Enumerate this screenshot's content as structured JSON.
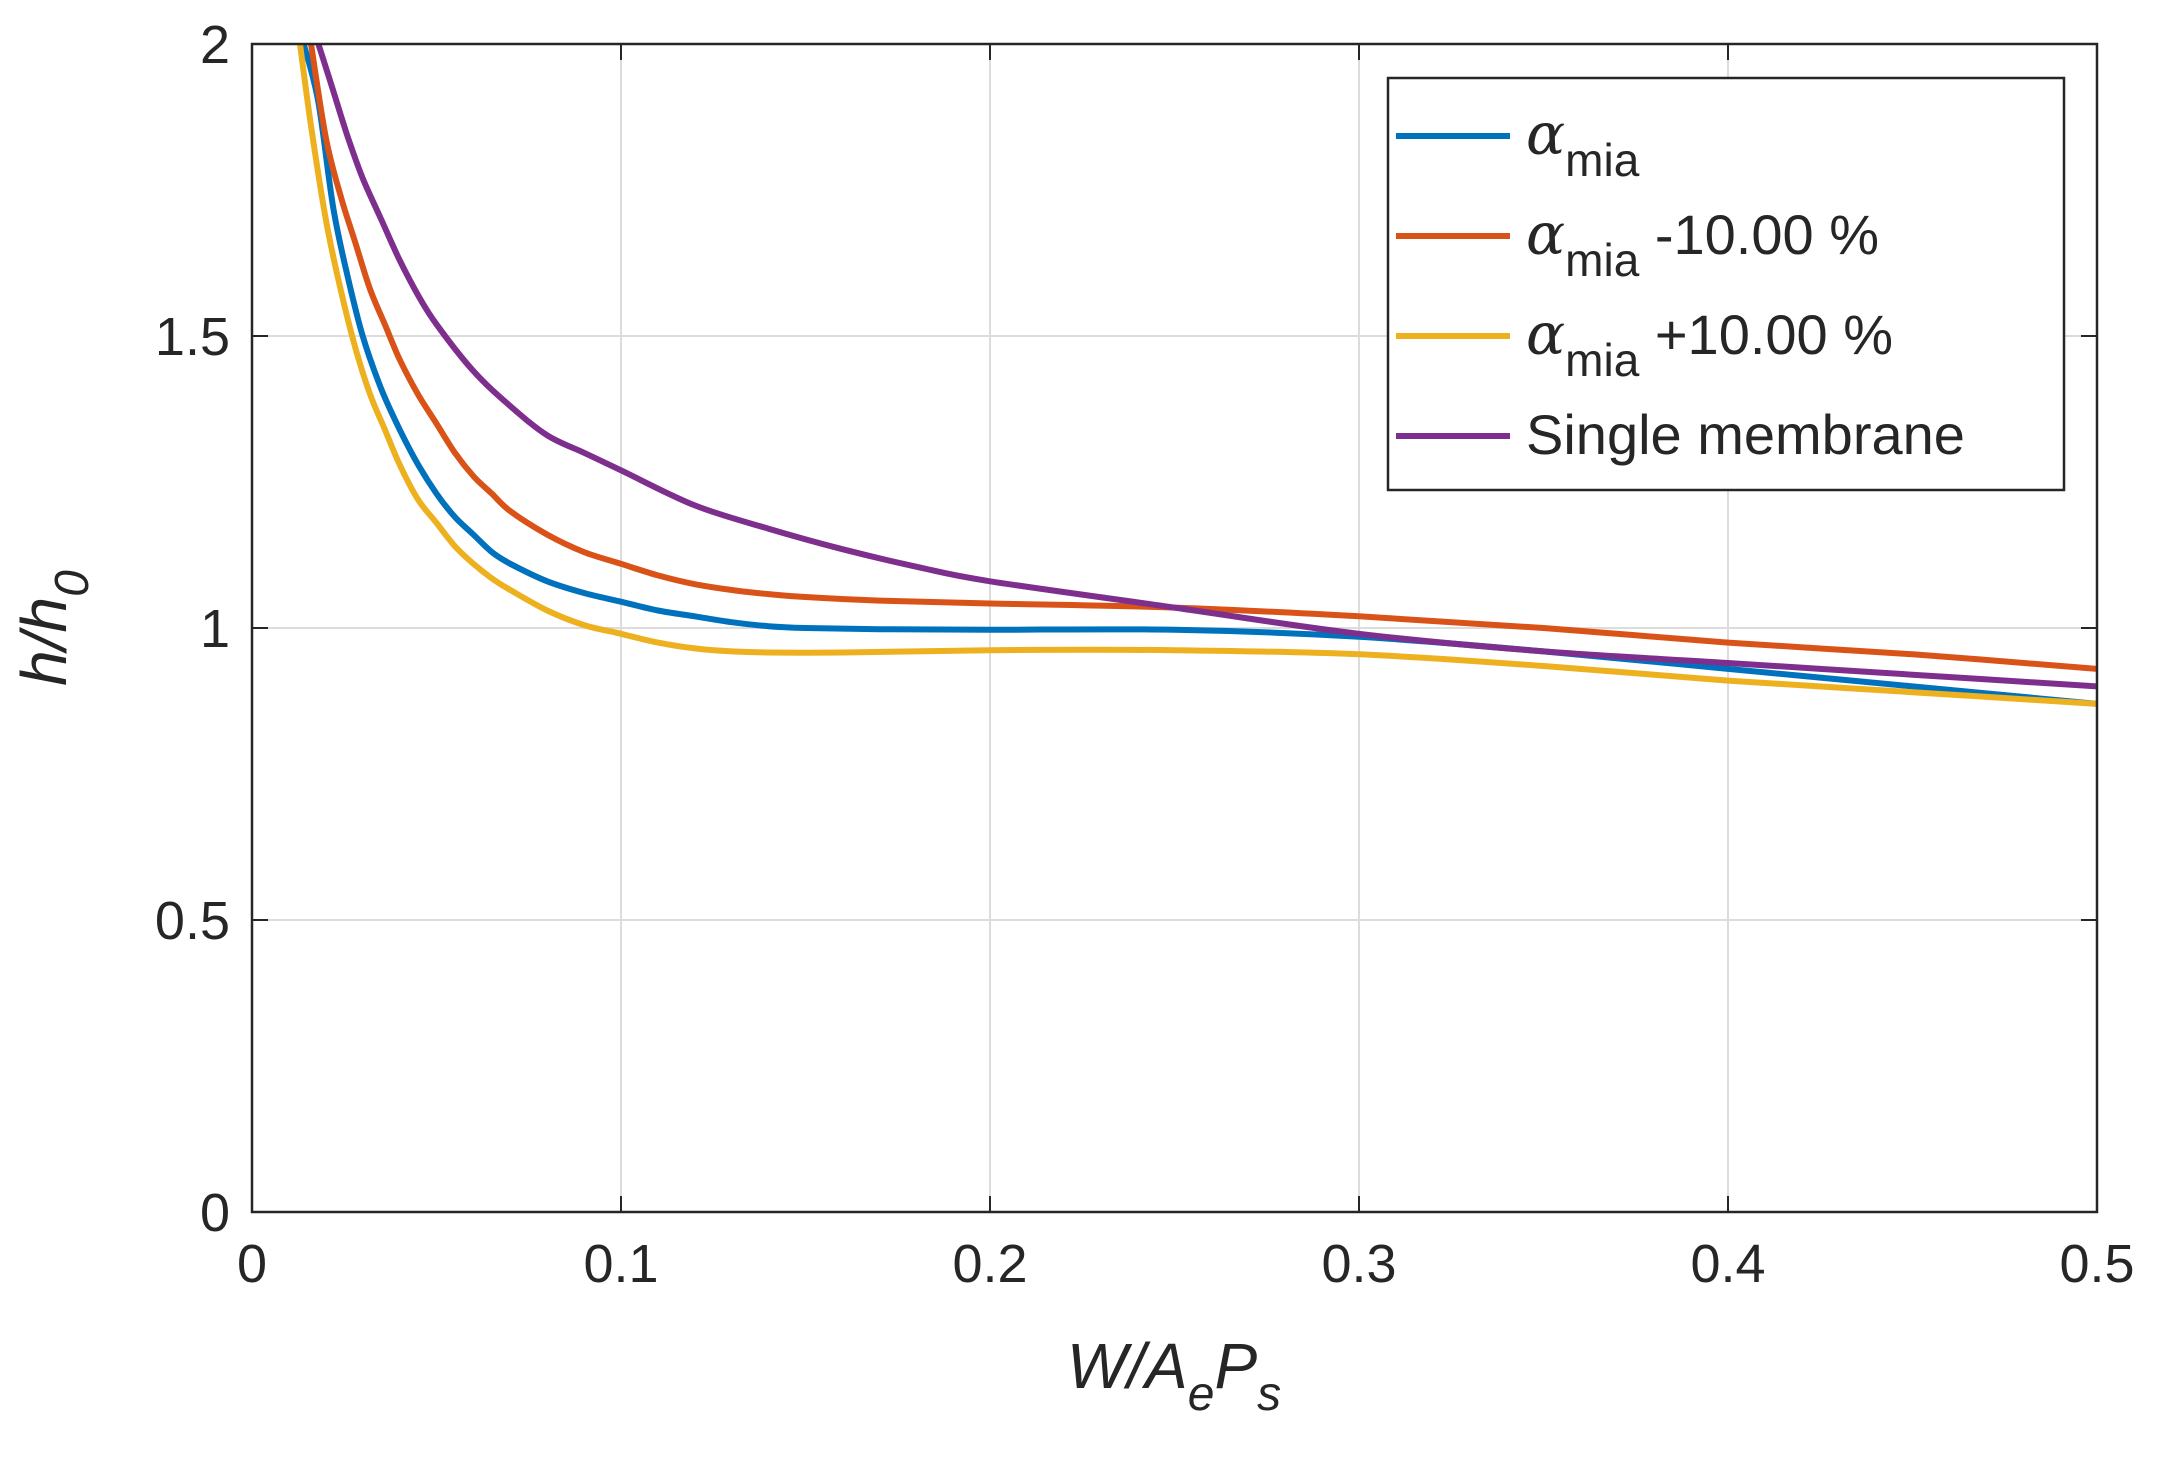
{
  "chart_data": {
    "type": "line",
    "title": "",
    "xlabel": {
      "main": "W/A",
      "sub1": "e",
      "mid": "P",
      "sub2": "s"
    },
    "ylabel": {
      "main": "h/h",
      "sub": "0"
    },
    "xlim": [
      0,
      0.5
    ],
    "ylim": [
      0,
      2
    ],
    "grid": true,
    "legend_position": "top-right",
    "xticks": [
      0,
      0.1,
      0.2,
      0.3,
      0.4,
      0.5
    ],
    "xtick_labels": [
      "0",
      "0.1",
      "0.2",
      "0.3",
      "0.4",
      "0.5"
    ],
    "yticks": [
      0,
      0.5,
      1,
      1.5,
      2
    ],
    "ytick_labels": [
      "0",
      "0.5",
      "1",
      "1.5",
      "2"
    ],
    "series": [
      {
        "name": "α mia",
        "legend": {
          "symbol": "α",
          "sub": "mia",
          "suffix": ""
        },
        "color": "#0072BD",
        "x": [
          0.014,
          0.018,
          0.022,
          0.026,
          0.03,
          0.035,
          0.04,
          0.045,
          0.05,
          0.055,
          0.06,
          0.065,
          0.07,
          0.08,
          0.09,
          0.1,
          0.11,
          0.12,
          0.13,
          0.14,
          0.15,
          0.17,
          0.2,
          0.25,
          0.3,
          0.35,
          0.4,
          0.45,
          0.5
        ],
        "y": [
          2.0,
          1.9,
          1.72,
          1.6,
          1.5,
          1.41,
          1.34,
          1.28,
          1.23,
          1.19,
          1.16,
          1.13,
          1.11,
          1.08,
          1.06,
          1.045,
          1.03,
          1.02,
          1.01,
          1.003,
          1.0,
          0.998,
          0.997,
          0.997,
          0.985,
          0.96,
          0.93,
          0.9,
          0.87
        ]
      },
      {
        "name": "α mia -10.00 %",
        "legend": {
          "symbol": "α",
          "sub": "mia",
          "suffix": " -10.00 %"
        },
        "color": "#D95319",
        "x": [
          0.016,
          0.02,
          0.024,
          0.028,
          0.032,
          0.036,
          0.04,
          0.045,
          0.05,
          0.055,
          0.06,
          0.065,
          0.07,
          0.08,
          0.09,
          0.1,
          0.11,
          0.12,
          0.13,
          0.14,
          0.15,
          0.17,
          0.2,
          0.25,
          0.3,
          0.35,
          0.4,
          0.45,
          0.5
        ],
        "y": [
          2.0,
          1.84,
          1.74,
          1.66,
          1.58,
          1.52,
          1.46,
          1.4,
          1.35,
          1.3,
          1.26,
          1.23,
          1.2,
          1.16,
          1.13,
          1.11,
          1.09,
          1.075,
          1.065,
          1.058,
          1.053,
          1.047,
          1.042,
          1.035,
          1.02,
          1.0,
          0.975,
          0.955,
          0.93
        ]
      },
      {
        "name": "α mia +10.00 %",
        "legend": {
          "symbol": "α",
          "sub": "mia",
          "suffix": " +10.00 %"
        },
        "color": "#EDB120",
        "x": [
          0.013,
          0.016,
          0.02,
          0.024,
          0.028,
          0.032,
          0.036,
          0.04,
          0.045,
          0.05,
          0.055,
          0.06,
          0.065,
          0.07,
          0.08,
          0.09,
          0.1,
          0.11,
          0.12,
          0.13,
          0.14,
          0.16,
          0.2,
          0.25,
          0.3,
          0.35,
          0.4,
          0.45,
          0.5
        ],
        "y": [
          2.0,
          1.86,
          1.7,
          1.58,
          1.48,
          1.4,
          1.34,
          1.28,
          1.22,
          1.18,
          1.14,
          1.11,
          1.085,
          1.065,
          1.03,
          1.005,
          0.99,
          0.975,
          0.965,
          0.96,
          0.958,
          0.958,
          0.962,
          0.962,
          0.955,
          0.935,
          0.91,
          0.89,
          0.87
        ]
      },
      {
        "name": "Single membrane",
        "legend": {
          "symbol": "",
          "sub": "",
          "suffix": "Single membrane"
        },
        "color": "#7E2F8E",
        "x": [
          0.018,
          0.022,
          0.026,
          0.03,
          0.035,
          0.04,
          0.045,
          0.05,
          0.06,
          0.07,
          0.08,
          0.09,
          0.1,
          0.12,
          0.14,
          0.16,
          0.18,
          0.2,
          0.25,
          0.3,
          0.35,
          0.4,
          0.45,
          0.5
        ],
        "y": [
          2.0,
          1.92,
          1.84,
          1.77,
          1.7,
          1.63,
          1.57,
          1.52,
          1.44,
          1.38,
          1.33,
          1.3,
          1.27,
          1.21,
          1.17,
          1.135,
          1.105,
          1.08,
          1.035,
          0.99,
          0.96,
          0.94,
          0.92,
          0.9
        ]
      }
    ]
  }
}
